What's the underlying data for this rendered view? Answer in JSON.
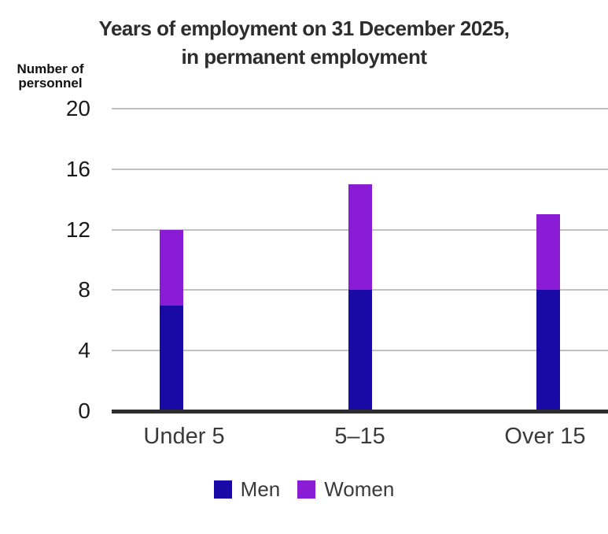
{
  "chart": {
    "title_line1": "Years of employment on 31 December 2025,",
    "title_line2": "in permanent employment",
    "y_axis_label_line1": "Number of",
    "y_axis_label_line2": "personnel"
  },
  "legend": {
    "items": [
      {
        "label": "Men",
        "color": "#1a0aa5"
      },
      {
        "label": "Women",
        "color": "#8a1cd6"
      }
    ]
  },
  "colors": {
    "men_bar": "#1a0aa5",
    "women_bar": "#8a1cd6",
    "gridline": "#c1c1c1",
    "axis_line": "#2d2d2d",
    "title_text": "#2d2d2d",
    "tick_text": "#1a1a1a",
    "label_text": "#3a3a3a"
  },
  "chart_data": {
    "type": "bar",
    "stacked": true,
    "title": "Years of employment on 31 December 2025, in permanent employment",
    "categories": [
      "Under 5",
      "5–15",
      "Over 15"
    ],
    "series": [
      {
        "name": "Men",
        "color": "#1a0aa5",
        "values": [
          7,
          8,
          8
        ]
      },
      {
        "name": "Women",
        "color": "#8a1cd6",
        "values": [
          5,
          7,
          5
        ]
      }
    ],
    "totals": [
      12,
      15,
      13
    ],
    "xlabel": "",
    "ylabel": "Number of personnel",
    "ylim": [
      0,
      20
    ],
    "yticks": [
      0,
      4,
      8,
      12,
      16,
      20
    ],
    "grid": "horizontal",
    "legend_position": "bottom"
  }
}
